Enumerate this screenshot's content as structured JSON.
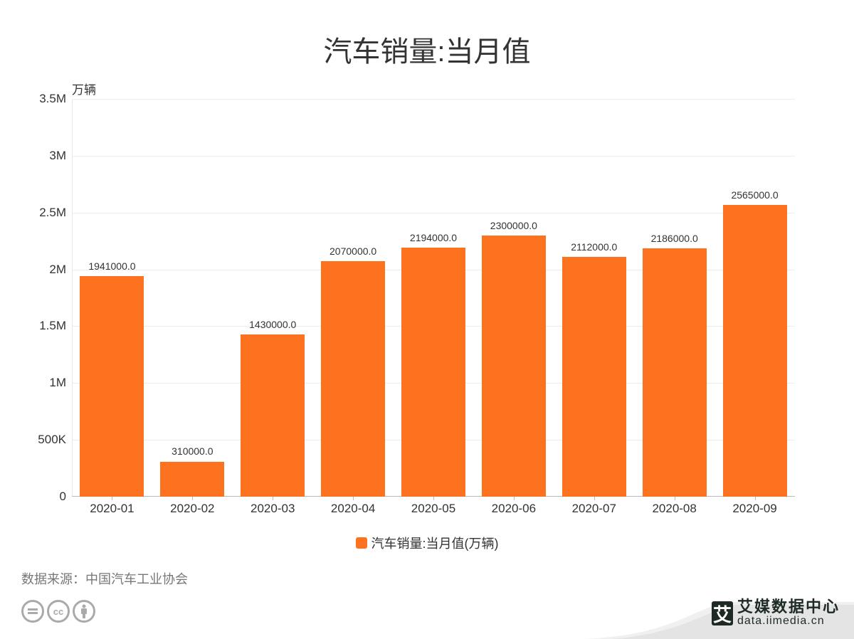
{
  "title": "汽车销量:当月值",
  "unit_label": "万辆",
  "legend": {
    "label": "汽车销量:当月值(万辆)",
    "color": "#fc721e"
  },
  "source": "数据来源：中国汽车工业协会",
  "brand": {
    "name": "艾媒数据中心",
    "url": "data.iimedia.cn",
    "logo_char": "艾"
  },
  "license_icons": [
    "=",
    "cc",
    "i"
  ],
  "chart_data": {
    "type": "bar",
    "title": "汽车销量:当月值",
    "xlabel": "",
    "ylabel": "万辆",
    "ylim": [
      0,
      3500000
    ],
    "yticks": [
      "0",
      "500K",
      "1M",
      "1.5M",
      "2M",
      "2.5M",
      "3M",
      "3.5M"
    ],
    "grid": true,
    "legend_position": "bottom",
    "categories": [
      "2020-01",
      "2020-02",
      "2020-03",
      "2020-04",
      "2020-05",
      "2020-06",
      "2020-07",
      "2020-08",
      "2020-09"
    ],
    "series": [
      {
        "name": "汽车销量:当月值(万辆)",
        "color": "#fc721e",
        "values": [
          1941000.0,
          310000.0,
          1430000.0,
          2070000.0,
          2194000.0,
          2300000.0,
          2112000.0,
          2186000.0,
          2565000.0
        ],
        "labels": [
          "1941000.0",
          "310000.0",
          "1430000.0",
          "2070000.0",
          "2194000.0",
          "2300000.0",
          "2112000.0",
          "2186000.0",
          "2565000.0"
        ]
      }
    ]
  }
}
